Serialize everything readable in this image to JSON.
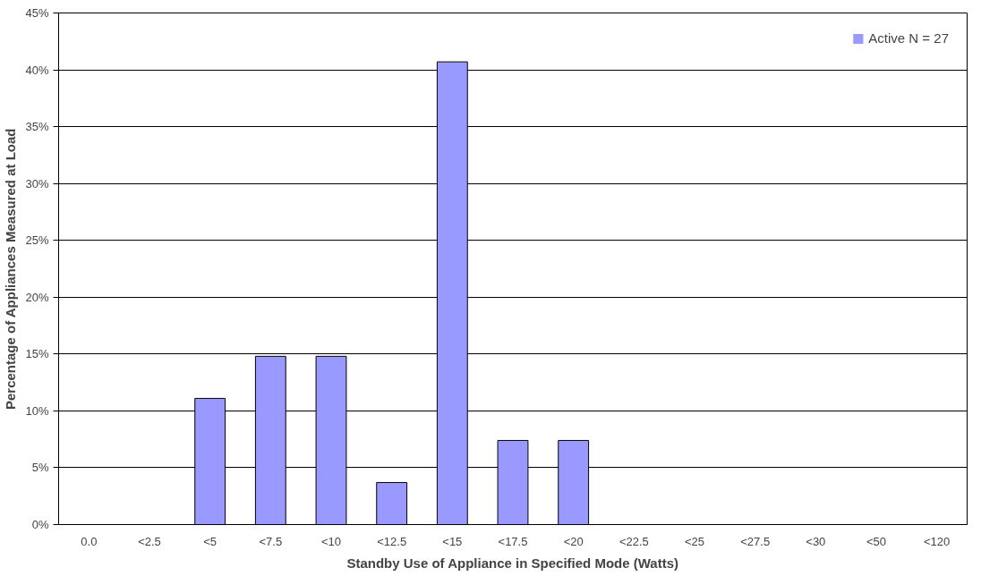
{
  "chart_data": {
    "type": "bar",
    "xlabel": "Standby Use of Appliance in Specified Mode (Watts)",
    "ylabel": "Percentage of Appliances Measured at Load",
    "categories": [
      "0.0",
      "<2.5",
      "<5",
      "<7.5",
      "<10",
      "<12.5",
      "<15",
      "<17.5",
      "<20",
      "<22.5",
      "<25",
      "<27.5",
      "<30",
      "<50",
      "<120"
    ],
    "series": [
      {
        "name": "Active N = 27",
        "color": "#9999ff",
        "values": [
          0,
          0,
          11.1,
          14.8,
          14.8,
          3.7,
          40.7,
          7.4,
          7.4,
          0,
          0,
          0,
          0,
          0,
          0
        ]
      }
    ],
    "ylim": [
      0,
      45
    ],
    "yticks": [
      {
        "value": 0,
        "label": "0%"
      },
      {
        "value": 5,
        "label": "5%"
      },
      {
        "value": 10,
        "label": "10%"
      },
      {
        "value": 15,
        "label": "15%"
      },
      {
        "value": 20,
        "label": "20%"
      },
      {
        "value": 25,
        "label": "25%"
      },
      {
        "value": 30,
        "label": "30%"
      },
      {
        "value": 35,
        "label": "35%"
      },
      {
        "value": 40,
        "label": "40%"
      },
      {
        "value": 45,
        "label": "45%"
      }
    ],
    "grid": "y",
    "legend": "top right"
  }
}
